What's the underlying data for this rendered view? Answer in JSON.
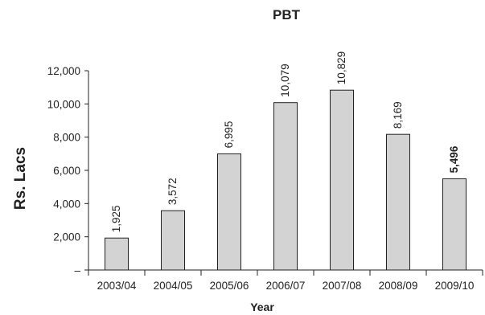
{
  "chart_data": {
    "type": "bar",
    "title": "PBT",
    "xlabel": "Year",
    "ylabel": "Rs. Lacs",
    "categories": [
      "2003/04",
      "2004/05",
      "2005/06",
      "2006/07",
      "2007/08",
      "2008/09",
      "2009/10"
    ],
    "values": [
      1925,
      3572,
      6995,
      10079,
      10829,
      8169,
      5496
    ],
    "value_labels": [
      "1,925",
      "3,572",
      "6,995",
      "10,079",
      "10,829",
      "8,169",
      "5,496"
    ],
    "emphasized_label_index": 6,
    "ylim": [
      0,
      12000
    ],
    "yticks": [
      0,
      2000,
      4000,
      6000,
      8000,
      10000,
      12000
    ],
    "ytick_labels": [
      "–",
      "2,000",
      "4,000",
      "6,000",
      "8,000",
      "10,000",
      "12,000"
    ],
    "grid": false,
    "legend": "none",
    "bar_color": "#d3d3d3"
  }
}
